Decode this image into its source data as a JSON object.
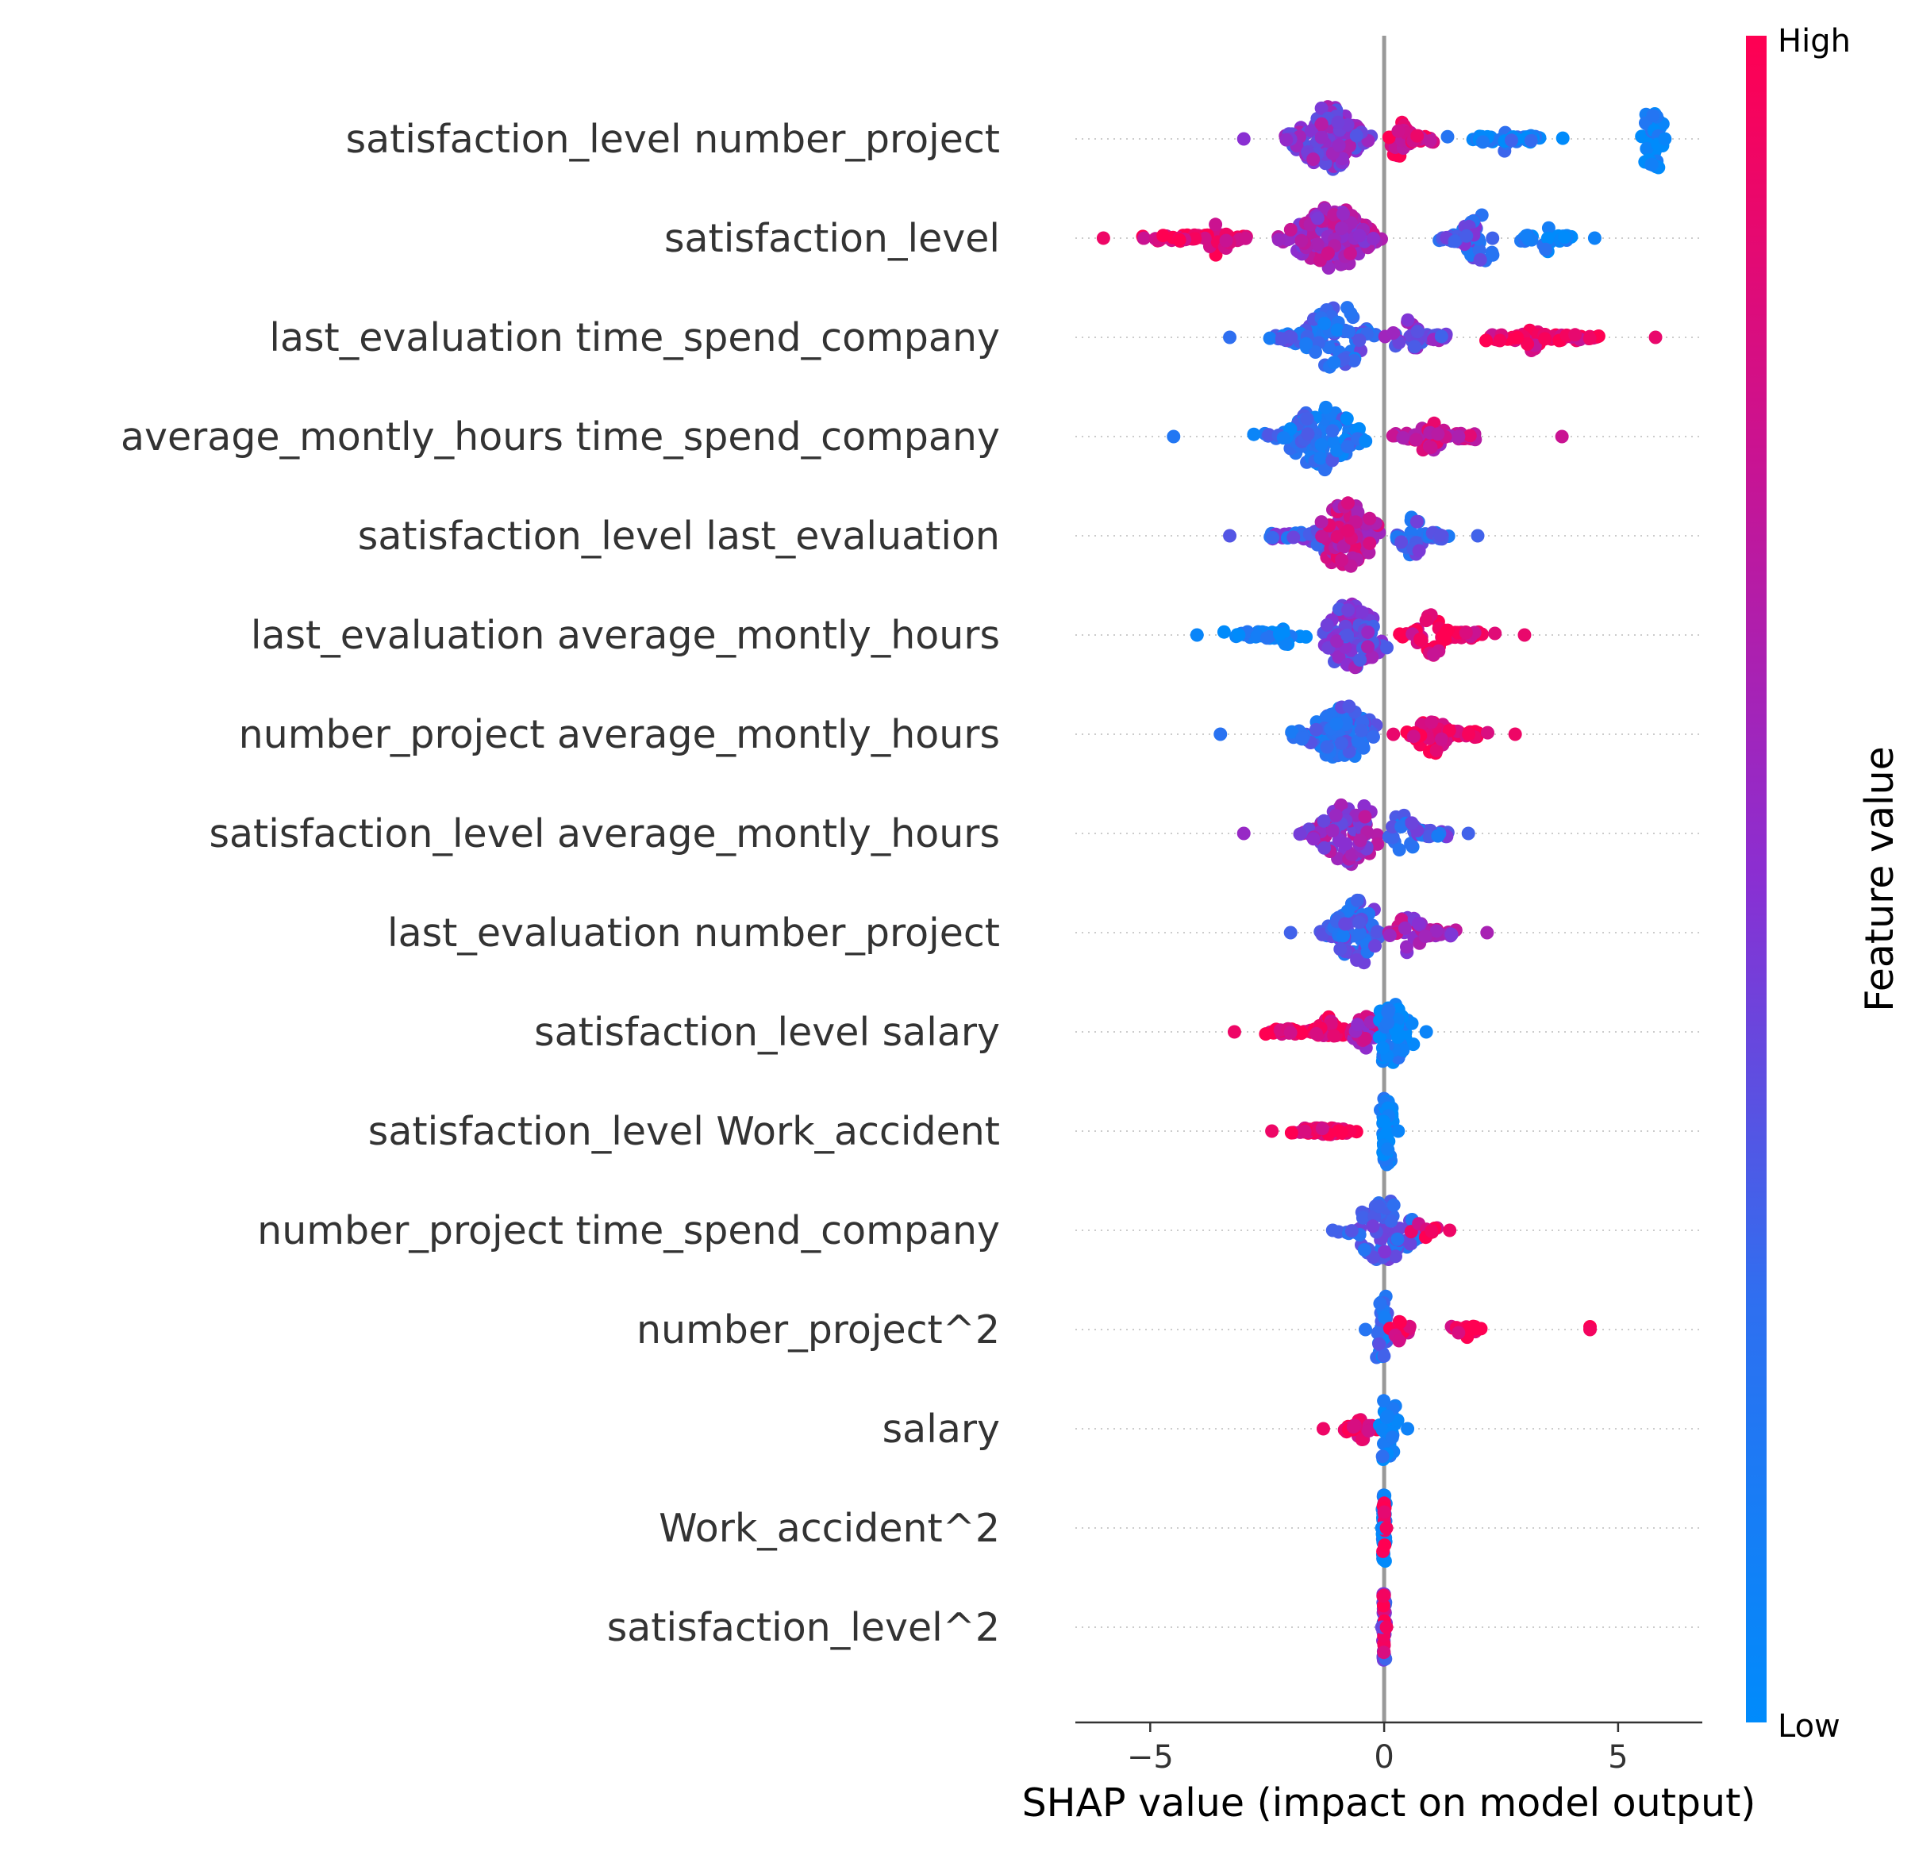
{
  "chart_data": {
    "type": "scatter",
    "subtype": "beeswarm",
    "xlabel": "SHAP value (impact on model output)",
    "xlim": [
      -6.6,
      6.8
    ],
    "xticks": [
      {
        "value": -5,
        "label": "−5"
      },
      {
        "value": 0,
        "label": "0"
      },
      {
        "value": 5,
        "label": "5"
      }
    ],
    "grid": false,
    "colorbar": {
      "title": "Feature value",
      "high_label": "High",
      "low_label": "Low",
      "high_color": "#ff0052",
      "mid_color": "#8a2fd2",
      "low_color": "#008bfb"
    },
    "features": [
      {
        "name": "satisfaction_level number_project",
        "min": -3.0,
        "max": 6.0,
        "segments": [
          {
            "lo": -2.5,
            "hi": 0.0,
            "center": -1.2,
            "spread": 0.45,
            "color": 0.5,
            "n": 110
          },
          {
            "lo": 0.0,
            "hi": 1.6,
            "center": 0.3,
            "spread": 0.18,
            "color": 0.85,
            "n": 45
          },
          {
            "lo": 1.2,
            "hi": 4.2,
            "center": 2.5,
            "spread": 0.12,
            "color": 0.12,
            "n": 45
          },
          {
            "lo": 5.3,
            "hi": 6.0,
            "center": 5.8,
            "spread": 0.35,
            "color": 0.05,
            "n": 40
          }
        ]
      },
      {
        "name": "satisfaction_level",
        "min": -6.0,
        "max": 4.5,
        "segments": [
          {
            "lo": -6.0,
            "hi": -2.8,
            "center": -3.5,
            "spread": 0.2,
            "color": 0.92,
            "n": 60
          },
          {
            "lo": -2.5,
            "hi": 0.3,
            "center": -1.1,
            "spread": 0.55,
            "color": 0.62,
            "n": 120
          },
          {
            "lo": 0.3,
            "hi": 2.5,
            "center": 2.2,
            "spread": 0.35,
            "color": 0.32,
            "n": 45
          },
          {
            "lo": 2.6,
            "hi": 4.5,
            "center": 3.5,
            "spread": 0.12,
            "color": 0.08,
            "n": 30
          }
        ]
      },
      {
        "name": "last_evaluation time_spend_company",
        "min": -3.3,
        "max": 5.8,
        "segments": [
          {
            "lo": -3.0,
            "hi": 0.0,
            "center": -1.0,
            "spread": 0.5,
            "color": 0.25,
            "n": 100
          },
          {
            "lo": 0.0,
            "hi": 2.0,
            "center": 0.5,
            "spread": 0.2,
            "color": 0.45,
            "n": 40
          },
          {
            "lo": 1.5,
            "hi": 5.8,
            "center": 3.2,
            "spread": 0.12,
            "color": 0.9,
            "n": 70
          }
        ]
      },
      {
        "name": "average_montly_hours time_spend_company",
        "min": -4.5,
        "max": 3.8,
        "segments": [
          {
            "lo": -3.0,
            "hi": 0.0,
            "center": -1.3,
            "spread": 0.5,
            "color": 0.18,
            "n": 110
          },
          {
            "lo": 0.0,
            "hi": 2.6,
            "center": 1.0,
            "spread": 0.2,
            "color": 0.75,
            "n": 55
          }
        ]
      },
      {
        "name": "satisfaction_level last_evaluation",
        "min": -3.3,
        "max": 2.0,
        "segments": [
          {
            "lo": -3.3,
            "hi": -0.5,
            "center": -1.2,
            "spread": 0.22,
            "color": 0.35,
            "n": 45
          },
          {
            "lo": -1.5,
            "hi": 0.2,
            "center": -0.8,
            "spread": 0.5,
            "color": 0.72,
            "n": 90
          },
          {
            "lo": 0.2,
            "hi": 2.0,
            "center": 0.6,
            "spread": 0.2,
            "color": 0.3,
            "n": 40
          }
        ]
      },
      {
        "name": "last_evaluation average_montly_hours",
        "min": -4.0,
        "max": 3.0,
        "segments": [
          {
            "lo": -4.0,
            "hi": -1.5,
            "center": -2.0,
            "spread": 0.12,
            "color": 0.05,
            "n": 55
          },
          {
            "lo": -1.5,
            "hi": 0.2,
            "center": -0.7,
            "spread": 0.55,
            "color": 0.45,
            "n": 90
          },
          {
            "lo": 0.2,
            "hi": 3.0,
            "center": 1.0,
            "spread": 0.22,
            "color": 0.9,
            "n": 60
          }
        ]
      },
      {
        "name": "number_project average_montly_hours",
        "min": -3.5,
        "max": 2.8,
        "segments": [
          {
            "lo": -2.5,
            "hi": 0.0,
            "center": -0.8,
            "spread": 0.5,
            "color": 0.22,
            "n": 95
          },
          {
            "lo": 0.0,
            "hi": 2.8,
            "center": 1.0,
            "spread": 0.22,
            "color": 0.92,
            "n": 60
          }
        ]
      },
      {
        "name": "satisfaction_level average_montly_hours",
        "min": -3.0,
        "max": 1.8,
        "segments": [
          {
            "lo": -2.3,
            "hi": 0.0,
            "center": -0.7,
            "spread": 0.45,
            "color": 0.55,
            "n": 90
          },
          {
            "lo": 0.0,
            "hi": 1.8,
            "center": 0.4,
            "spread": 0.22,
            "color": 0.3,
            "n": 40
          }
        ]
      },
      {
        "name": "last_evaluation number_project",
        "min": -2.0,
        "max": 2.2,
        "segments": [
          {
            "lo": -2.0,
            "hi": 0.0,
            "center": -0.5,
            "spread": 0.4,
            "color": 0.3,
            "n": 75
          },
          {
            "lo": 0.0,
            "hi": 2.2,
            "center": 0.5,
            "spread": 0.22,
            "color": 0.62,
            "n": 45
          }
        ]
      },
      {
        "name": "satisfaction_level salary",
        "min": -3.2,
        "max": 0.9,
        "segments": [
          {
            "lo": -3.2,
            "hi": -0.5,
            "center": -1.2,
            "spread": 0.14,
            "color": 0.92,
            "n": 60
          },
          {
            "lo": -1.0,
            "hi": 0.0,
            "center": -0.4,
            "spread": 0.18,
            "color": 0.65,
            "n": 25
          },
          {
            "lo": -0.1,
            "hi": 0.9,
            "center": 0.0,
            "spread": 0.45,
            "color": 0.06,
            "n": 60
          }
        ]
      },
      {
        "name": "satisfaction_level Work_accident",
        "min": -2.4,
        "max": 0.3,
        "segments": [
          {
            "lo": -2.4,
            "hi": -0.1,
            "center": -1.2,
            "spread": 0.06,
            "color": 0.92,
            "n": 50
          },
          {
            "lo": -0.1,
            "hi": 0.3,
            "center": 0.05,
            "spread": 0.5,
            "color": 0.05,
            "n": 50
          }
        ]
      },
      {
        "name": "number_project time_spend_company",
        "min": -1.1,
        "max": 1.4,
        "segments": [
          {
            "lo": -1.1,
            "hi": 1.0,
            "center": 0.0,
            "spread": 0.45,
            "color": 0.3,
            "n": 70
          },
          {
            "lo": 0.5,
            "hi": 1.4,
            "center": 0.8,
            "spread": 0.1,
            "color": 0.92,
            "n": 8
          }
        ]
      },
      {
        "name": "number_project^2",
        "min": -0.4,
        "max": 4.4,
        "segments": [
          {
            "lo": -0.3,
            "hi": 0.1,
            "center": 0.0,
            "spread": 0.6,
            "color": 0.2,
            "n": 30
          },
          {
            "lo": 0.0,
            "hi": 0.7,
            "center": 0.3,
            "spread": 0.08,
            "color": 0.92,
            "n": 15
          },
          {
            "lo": 1.3,
            "hi": 2.2,
            "center": 1.8,
            "spread": 0.06,
            "color": 0.95,
            "n": 18
          },
          {
            "lo": 4.4,
            "hi": 4.4,
            "center": 4.4,
            "spread": 0.02,
            "color": 0.95,
            "n": 1
          }
        ]
      },
      {
        "name": "salary",
        "min": -1.3,
        "max": 0.5,
        "segments": [
          {
            "lo": -1.3,
            "hi": -0.1,
            "center": -0.5,
            "spread": 0.1,
            "color": 0.92,
            "n": 22
          },
          {
            "lo": -0.1,
            "hi": 0.5,
            "center": 0.0,
            "spread": 0.55,
            "color": 0.08,
            "n": 35
          }
        ]
      },
      {
        "name": "Work_accident^2",
        "min": -0.05,
        "max": 0.05,
        "segments": [
          {
            "lo": -0.05,
            "hi": 0.05,
            "center": 0.0,
            "spread": 0.7,
            "color": 0.05,
            "n": 40
          },
          {
            "lo": -0.04,
            "hi": 0.04,
            "center": 0.0,
            "spread": 0.35,
            "color": 0.95,
            "n": 10
          }
        ]
      },
      {
        "name": "satisfaction_level^2",
        "min": -0.05,
        "max": 0.05,
        "segments": [
          {
            "lo": -0.05,
            "hi": 0.05,
            "center": 0.0,
            "spread": 0.7,
            "color": 0.4,
            "n": 40
          },
          {
            "lo": -0.04,
            "hi": 0.04,
            "center": 0.0,
            "spread": 0.4,
            "color": 0.95,
            "n": 12
          }
        ]
      }
    ]
  }
}
